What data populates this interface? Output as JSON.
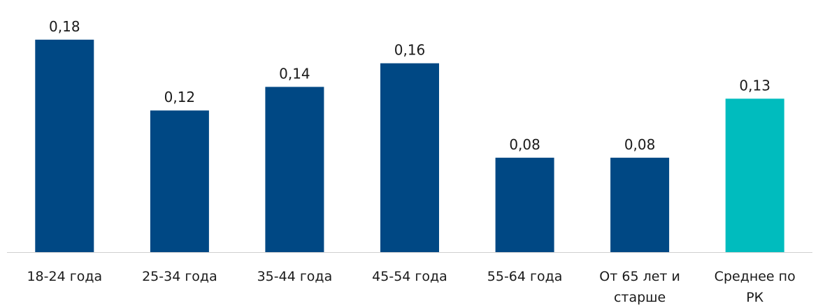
{
  "chart_data": {
    "type": "bar",
    "title": "",
    "xlabel": "",
    "ylabel": "",
    "categories": [
      [
        "18-24 года"
      ],
      [
        "25-34 года"
      ],
      [
        "35-44 года"
      ],
      [
        "45-54 года"
      ],
      [
        "55-64 года"
      ],
      [
        "От 65 лет и",
        "старше"
      ],
      [
        "Среднее по",
        "РК"
      ]
    ],
    "values": [
      0.18,
      0.12,
      0.14,
      0.16,
      0.08,
      0.08,
      0.13
    ],
    "value_labels": [
      "0,18",
      "0,12",
      "0,14",
      "0,16",
      "0,08",
      "0,08",
      "0,13"
    ],
    "ylim": [
      0,
      0.2
    ],
    "grid": false,
    "legend": "none",
    "colors": {
      "default_bar": "#004884",
      "highlight_bar": "#00BCBE",
      "axis": "#D0D0D0"
    },
    "highlight_index": 6
  }
}
